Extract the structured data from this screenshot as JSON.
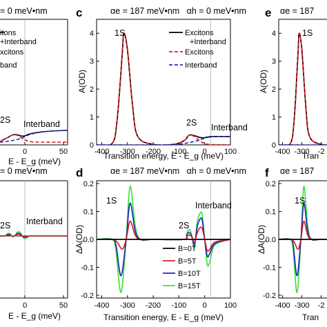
{
  "figure": {
    "panels": [
      {
        "id": "a",
        "letter": "",
        "header": "= 0 meV•nm",
        "x_tick_labels": [
          "0",
          "50"
        ],
        "xlabel": "E - E_g (meV)",
        "annotations": {
          "s2": "2S",
          "band": "Interband"
        },
        "legend_partial": [
          "itons",
          "+Interband",
          "xcitons",
          "band"
        ]
      },
      {
        "id": "c",
        "letter": "c",
        "header": "αe = 187 meV•nm   αh = 0 meV•nm",
        "x_tick_labels": [
          "-400",
          "-300",
          "-200",
          "-100",
          "0",
          "100"
        ],
        "y_tick_labels": [
          "0",
          "1",
          "2",
          "3",
          "4"
        ],
        "xlabel": "Transition energy, E - E_g (meV)",
        "ylabel": "A(OD)",
        "annotations": {
          "s1": "1S",
          "s2": "2S",
          "band": "Interband"
        },
        "legend": [
          "Excitons",
          "+Interband",
          "Excitons",
          "Interband"
        ]
      },
      {
        "id": "e",
        "letter": "e",
        "header": "αe = 187",
        "x_tick_labels": [
          "-400",
          "-300",
          "-2"
        ],
        "y_tick_labels": [
          "0",
          "1",
          "2",
          "3",
          "4"
        ],
        "xlabel": "Tran",
        "ylabel": "A(OD)",
        "annotations": {
          "s1": "1S"
        }
      },
      {
        "id": "b",
        "letter": "",
        "header": "= 0 meV•nm",
        "x_tick_labels": [
          "0",
          "50"
        ],
        "xlabel": "E - E_g (meV)",
        "annotations": {
          "s2": "2S",
          "band": "Interband"
        }
      },
      {
        "id": "d",
        "letter": "d",
        "header": "αe = 187 meV•nm   αh = 0 meV•nm",
        "x_tick_labels": [
          "-400",
          "-300",
          "-200",
          "-100",
          "0",
          "100"
        ],
        "y_tick_labels": [
          "0.2",
          "0.1",
          "0.0",
          "-0.1",
          "-0.2"
        ],
        "xlabel": "Transition energy, E - E_g (meV)",
        "ylabel": "ΔA(OD)",
        "annotations": {
          "s1": "1S",
          "s2": "2S",
          "band": "Interband"
        },
        "legend": [
          "B=0T",
          "B=5T",
          "B=10T",
          "B=15T"
        ]
      },
      {
        "id": "f",
        "letter": "f",
        "header": "αe = 187",
        "x_tick_labels": [
          "-400",
          "-300",
          "-2"
        ],
        "y_tick_labels": [
          "0.2",
          "0.1",
          "0.0",
          "-0.1",
          "-0.2"
        ],
        "xlabel": "Tran",
        "ylabel": "ΔA(OD)",
        "annotations": {
          "s1": "1S"
        }
      }
    ],
    "colors": {
      "total": "#000000",
      "excitons": "#e8141e",
      "interband": "#1f2fbf",
      "b0": "#000000",
      "b5": "#d0202a",
      "b10": "#1c2cb8",
      "b15": "#3ee23e"
    }
  },
  "chart_data": [
    {
      "panel": "c",
      "type": "line",
      "xlim": [
        -420,
        100
      ],
      "ylim": [
        0,
        4.5
      ],
      "series": [
        {
          "name": "Excitons +Interband",
          "x": [
            -420,
            -360,
            -340,
            -320,
            -314,
            -300,
            -280,
            -260,
            -200,
            -120,
            -80,
            -60,
            -40,
            -20,
            -5,
            10,
            40,
            100
          ],
          "y": [
            0,
            0.05,
            0.9,
            3.3,
            4.0,
            3.4,
            1.4,
            0.3,
            0.02,
            0.02,
            0.15,
            0.35,
            0.33,
            0.27,
            0.25,
            0.28,
            0.3,
            0.3
          ]
        },
        {
          "name": "Excitons",
          "x": [
            -420,
            -360,
            -340,
            -320,
            -314,
            -300,
            -280,
            -260,
            -200,
            -120,
            -80,
            -60,
            -40,
            -20,
            0,
            30,
            100
          ],
          "y": [
            0,
            0.05,
            0.9,
            3.3,
            4.0,
            3.4,
            1.4,
            0.3,
            0.02,
            0.02,
            0.15,
            0.35,
            0.3,
            0.15,
            0.05,
            0.01,
            0.0
          ]
        },
        {
          "name": "Interband",
          "x": [
            -420,
            -200,
            -120,
            -80,
            -40,
            -20,
            0,
            20,
            50,
            100
          ],
          "y": [
            0,
            0.0,
            0.01,
            0.05,
            0.12,
            0.18,
            0.24,
            0.28,
            0.3,
            0.3
          ]
        }
      ]
    },
    {
      "panel": "d",
      "type": "line",
      "xlim": [
        -420,
        100
      ],
      "ylim": [
        -0.21,
        0.21
      ],
      "series": [
        {
          "name": "B=0T",
          "x": [
            -420,
            100
          ],
          "y": [
            0,
            0
          ]
        },
        {
          "name": "B=5T",
          "x": [
            -420,
            -360,
            -340,
            -320,
            -305,
            -290,
            -270,
            -250,
            -200,
            -80,
            -70,
            -60,
            -50,
            -40,
            -30,
            -20,
            -10,
            0,
            10,
            20,
            40,
            100
          ],
          "y": [
            0,
            0,
            -0.01,
            -0.035,
            0.0,
            0.065,
            0.015,
            0.0,
            0.0,
            0.0,
            0.01,
            0.015,
            0.01,
            -0.01,
            0.02,
            0.04,
            0.04,
            0.0,
            -0.04,
            -0.035,
            -0.01,
            0
          ]
        },
        {
          "name": "B=10T",
          "x": [
            -420,
            -360,
            -345,
            -325,
            -305,
            -290,
            -270,
            -250,
            -200,
            -80,
            -70,
            -60,
            -50,
            -40,
            -30,
            -20,
            -10,
            0,
            10,
            20,
            40,
            100
          ],
          "y": [
            0,
            0,
            -0.02,
            -0.13,
            0.0,
            0.13,
            0.03,
            0.0,
            0.0,
            0.0,
            0.015,
            0.025,
            0.01,
            -0.02,
            0.04,
            0.07,
            0.07,
            0.0,
            -0.06,
            -0.05,
            -0.015,
            0
          ]
        },
        {
          "name": "B=15T",
          "x": [
            -420,
            -360,
            -345,
            -325,
            -305,
            -290,
            -270,
            -250,
            -200,
            -80,
            -70,
            -60,
            -50,
            -40,
            -30,
            -20,
            -10,
            0,
            10,
            20,
            40,
            100
          ],
          "y": [
            0,
            0,
            -0.04,
            -0.19,
            0.0,
            0.19,
            0.05,
            0.0,
            0.0,
            0.0,
            0.02,
            0.035,
            0.015,
            -0.03,
            0.055,
            0.09,
            0.09,
            0.0,
            -0.09,
            -0.08,
            -0.02,
            0
          ]
        }
      ]
    }
  ]
}
